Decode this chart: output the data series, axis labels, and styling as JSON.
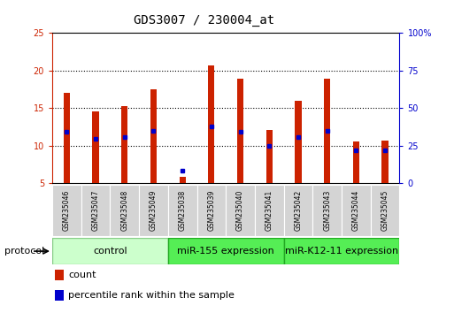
{
  "title": "GDS3007 / 230004_at",
  "samples": [
    "GSM235046",
    "GSM235047",
    "GSM235048",
    "GSM235049",
    "GSM235038",
    "GSM235039",
    "GSM235040",
    "GSM235041",
    "GSM235042",
    "GSM235043",
    "GSM235044",
    "GSM235045"
  ],
  "count_values": [
    17.0,
    14.5,
    15.2,
    17.5,
    5.8,
    20.7,
    18.9,
    12.1,
    16.0,
    18.9,
    10.5,
    10.7
  ],
  "percentile_values": [
    11.8,
    10.9,
    11.1,
    12.0,
    6.6,
    12.5,
    11.8,
    10.0,
    11.1,
    11.9,
    9.4,
    9.4
  ],
  "bar_bottom": 5.0,
  "ylim_left": [
    5,
    25
  ],
  "ylim_right": [
    0,
    100
  ],
  "yticks_left": [
    5,
    10,
    15,
    20,
    25
  ],
  "yticks_right": [
    0,
    25,
    50,
    75,
    100
  ],
  "yticklabels_right": [
    "0",
    "25",
    "50",
    "75",
    "100%"
  ],
  "bar_color": "#cc2200",
  "dot_color": "#0000cc",
  "bg_color": "#ffffff",
  "grid_color": "#000000",
  "groups": [
    {
      "label": "control",
      "start": 0,
      "end": 4,
      "color": "#ccffcc",
      "border": "#88cc88"
    },
    {
      "label": "miR-155 expression",
      "start": 4,
      "end": 8,
      "color": "#55ee55",
      "border": "#22aa22"
    },
    {
      "label": "miR-K12-11 expression",
      "start": 8,
      "end": 12,
      "color": "#55ee55",
      "border": "#22aa22"
    }
  ],
  "protocol_label": "protocol",
  "legend_items": [
    {
      "label": "count",
      "color": "#cc2200"
    },
    {
      "label": "percentile rank within the sample",
      "color": "#0000cc"
    }
  ],
  "title_fontsize": 10,
  "tick_fontsize": 7,
  "sample_fontsize": 5.5,
  "group_fontsize": 8,
  "legend_fontsize": 8,
  "protocol_fontsize": 8,
  "bar_width": 0.22
}
